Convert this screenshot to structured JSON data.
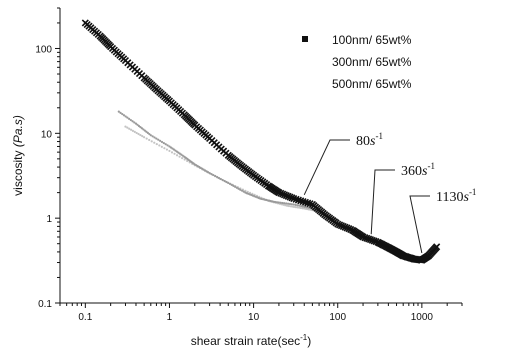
{
  "chart_data": {
    "type": "scatter",
    "xlabel": "shear strain rate(sec",
    "xlabel_sup": "-1",
    "xlabel_close": ")",
    "ylabel": "viscosity",
    "ylabel_unit": "(Pa.s)",
    "x_scale": "log",
    "y_scale": "log",
    "xlim": [
      0.05,
      3000
    ],
    "ylim": [
      0.1,
      300
    ],
    "x_ticks": [
      {
        "value": 0.1,
        "label": "0.1"
      },
      {
        "value": 1,
        "label": "1"
      },
      {
        "value": 10,
        "label": "10"
      },
      {
        "value": 100,
        "label": "100"
      },
      {
        "value": 1000,
        "label": "1000"
      }
    ],
    "y_ticks": [
      {
        "value": 0.1,
        "label": "0.1"
      },
      {
        "value": 1,
        "label": "1"
      },
      {
        "value": 10,
        "label": "10"
      },
      {
        "value": 100,
        "label": "100"
      }
    ],
    "grid": false,
    "legend_position": "top-right",
    "series": [
      {
        "name": "100nm/ 65wt%",
        "color": "#111111",
        "marker": "x",
        "x": [
          0.1,
          0.15,
          0.2,
          0.3,
          0.5,
          0.7,
          1,
          1.5,
          2,
          3,
          5,
          7,
          10,
          15,
          20,
          30,
          50,
          70,
          100,
          150,
          200,
          300,
          400,
          500,
          600,
          800,
          1000,
          1200,
          1500
        ],
        "y": [
          200,
          140,
          105,
          72,
          45,
          33,
          24,
          16.5,
          12.5,
          8.7,
          5.5,
          4.2,
          3.2,
          2.4,
          2.0,
          1.7,
          1.45,
          1.1,
          0.85,
          0.72,
          0.6,
          0.52,
          0.45,
          0.4,
          0.36,
          0.33,
          0.32,
          0.36,
          0.46
        ]
      },
      {
        "name": "300nm/ 65wt%",
        "color": "#9a9a9a",
        "marker": "dot",
        "x": [
          0.25,
          0.4,
          0.6,
          1,
          1.5,
          2,
          3,
          5,
          8,
          12,
          18,
          30,
          50,
          70,
          100
        ],
        "y": [
          18,
          13,
          9.5,
          7,
          5.3,
          4.3,
          3.4,
          2.6,
          2.0,
          1.7,
          1.55,
          1.45,
          1.3,
          1.1,
          0.95
        ]
      },
      {
        "name": "500nm/ 65wt%",
        "color": "#c4c4c4",
        "marker": "dot",
        "x": [
          0.3,
          0.5,
          1,
          2,
          4,
          8,
          15,
          25,
          40,
          60
        ],
        "y": [
          12,
          9,
          6.2,
          4.2,
          2.9,
          2.1,
          1.6,
          1.4,
          1.3,
          1.2
        ]
      }
    ],
    "annotations": [
      {
        "value": "80",
        "unit": "s",
        "sup": "-1",
        "x": 40,
        "y": 1.6
      },
      {
        "value": "360",
        "unit": "s",
        "sup": "-1",
        "x": 250,
        "y": 0.55
      },
      {
        "value": "1130",
        "unit": "s",
        "sup": "-1",
        "x": 1000,
        "y": 0.33
      }
    ]
  }
}
